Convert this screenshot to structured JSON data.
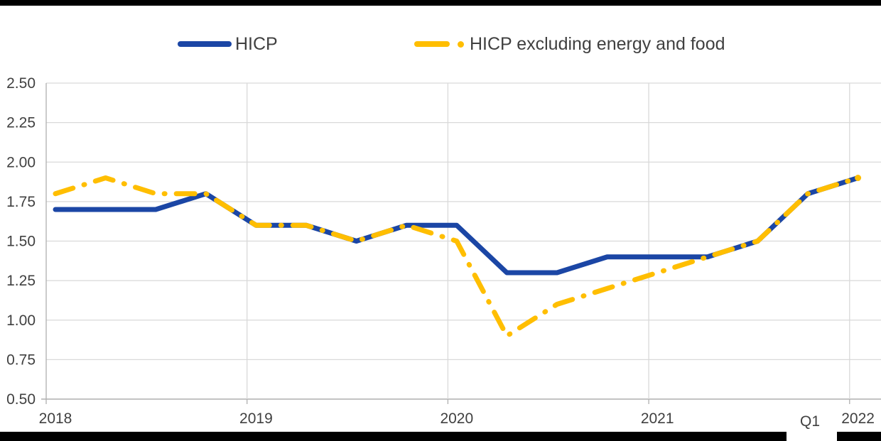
{
  "page": {
    "background": "#FFFFFF",
    "top_bar_color": "#000000",
    "bottom_bar_color": "#000000"
  },
  "legend": [
    {
      "label": "HICP",
      "color": "#1B46A5",
      "style": "solid"
    },
    {
      "label": "HICP excluding energy and food",
      "color": "#FFBE00",
      "style": "dash-dot"
    }
  ],
  "annotation": {
    "last_quarter_label": "Q1"
  },
  "chart_data": {
    "type": "line",
    "title": "",
    "xlabel": "",
    "ylabel": "",
    "x_unit": "quarter",
    "categories": [
      "2018 Q1",
      "2018 Q2",
      "2018 Q3",
      "2018 Q4",
      "2019 Q1",
      "2019 Q2",
      "2019 Q3",
      "2019 Q4",
      "2020 Q1",
      "2020 Q2",
      "2020 Q3",
      "2020 Q4",
      "2021 Q1",
      "2021 Q2",
      "2021 Q3",
      "2021 Q4",
      "2022 Q1"
    ],
    "series": [
      {
        "name": "HICP",
        "color": "#1B46A5",
        "style": "solid",
        "values": [
          1.7,
          1.7,
          1.7,
          1.8,
          1.6,
          1.6,
          1.5,
          1.6,
          1.6,
          1.3,
          1.3,
          1.4,
          1.4,
          1.4,
          1.5,
          1.8,
          1.9
        ]
      },
      {
        "name": "HICP excluding energy and food",
        "color": "#FFBE00",
        "style": "dash-dot",
        "values": [
          1.8,
          1.9,
          1.8,
          1.8,
          1.6,
          1.6,
          1.5,
          1.6,
          1.5,
          0.9,
          1.1,
          1.2,
          1.3,
          1.4,
          1.5,
          1.8,
          1.9
        ]
      }
    ],
    "ylim": [
      0.5,
      2.5
    ],
    "ytick_step": 0.25,
    "ytick_labels": [
      "2.50",
      "2.25",
      "2.00",
      "1.75",
      "1.50",
      "1.25",
      "1.00",
      "0.75",
      "0.50"
    ],
    "xticks": [
      {
        "label": "2018",
        "quarter": 0
      },
      {
        "label": "2019",
        "quarter": 4
      },
      {
        "label": "2020",
        "quarter": 8
      },
      {
        "label": "2021",
        "quarter": 12
      },
      {
        "label": "2022",
        "quarter": 16
      }
    ],
    "grid": true,
    "legend_position": "top",
    "grid_color": "#D9D9D9",
    "axis_color": "#AFAFAF",
    "text_color": "#404040"
  }
}
